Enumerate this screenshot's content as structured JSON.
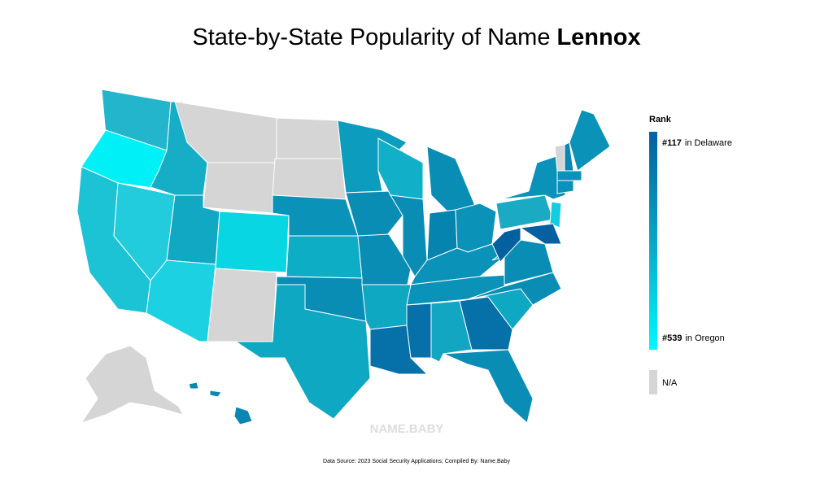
{
  "title": {
    "text": "State-by-State Popularity of Name",
    "name": "Lennox"
  },
  "legend": {
    "title": "Rank",
    "top": {
      "rank": "#117",
      "label": "in Delaware"
    },
    "bottom": {
      "rank": "#539",
      "label": "in Oregon"
    },
    "na": "N/A"
  },
  "watermark": "NAME.BABY",
  "source": "Data Source: 2023 Social Security Applications; Compiled By: Name.Baby"
}
